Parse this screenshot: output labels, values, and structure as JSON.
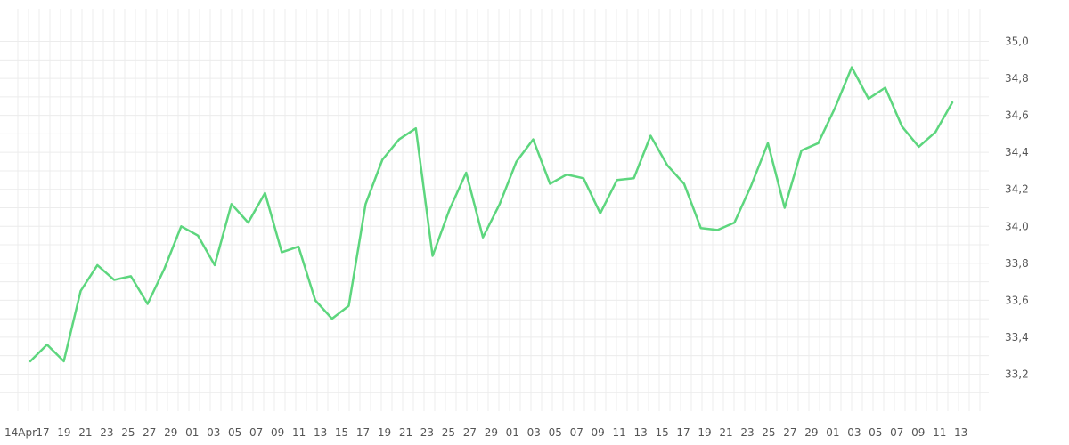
{
  "chart_data": {
    "type": "line",
    "title": "",
    "xlabel": "",
    "ylabel": "",
    "ylim": [
      33.0,
      35.07
    ],
    "grid": true,
    "y_axis_position": "right",
    "y_ticks": [
      "33,2",
      "33,4",
      "33,6",
      "33,8",
      "34,0",
      "34,2",
      "34,4",
      "34,6",
      "34,8",
      "35,0"
    ],
    "x_tick_labels": [
      "14Apr",
      "17",
      "19",
      "21",
      "23",
      "25",
      "27",
      "29",
      "01",
      "03",
      "05",
      "07",
      "09",
      "11",
      "13",
      "15",
      "17",
      "19",
      "21",
      "23",
      "25",
      "27",
      "29",
      "01",
      "03",
      "05",
      "07",
      "09",
      "11",
      "13",
      "15",
      "17",
      "19",
      "21",
      "23",
      "25",
      "27",
      "29",
      "01",
      "03",
      "05",
      "07",
      "09",
      "11",
      "13"
    ],
    "colors": {
      "series": "#5dd67e",
      "grid": "#ececec",
      "text": "#555555"
    },
    "series": [
      {
        "values": [
          33.27,
          33.36,
          33.27,
          33.65,
          33.79,
          33.71,
          33.73,
          33.58,
          33.77,
          34.0,
          33.95,
          33.79,
          34.12,
          34.02,
          34.18,
          33.86,
          33.89,
          33.6,
          33.5,
          33.57,
          34.12,
          34.36,
          34.47,
          34.53,
          33.84,
          34.09,
          34.29,
          33.94,
          34.12,
          34.35,
          34.47,
          34.23,
          34.28,
          34.26,
          34.07,
          34.25,
          34.26,
          34.49,
          34.33,
          34.23,
          33.99,
          33.98,
          34.02,
          34.22,
          34.45,
          34.1,
          34.41,
          34.45,
          34.64,
          34.86,
          34.69,
          34.75,
          34.54,
          34.43,
          34.51,
          34.67
        ]
      }
    ]
  }
}
